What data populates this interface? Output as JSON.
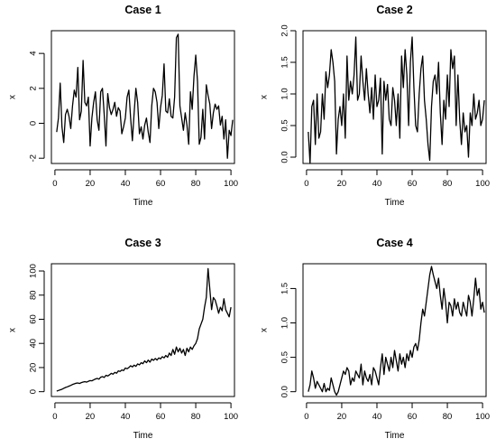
{
  "chart_data": [
    {
      "type": "line",
      "title": "Case 1",
      "xlabel": "Time",
      "ylabel": "x",
      "xlim": [
        -2,
        102
      ],
      "ylim": [
        -2.3,
        5.3
      ],
      "xticks": [
        0,
        20,
        40,
        60,
        80,
        100
      ],
      "yticks": [
        -2,
        0,
        2,
        4
      ],
      "ytick_labels": [
        "-2",
        "0",
        "2",
        "4"
      ],
      "x_start": 1,
      "values": [
        -0.5,
        0.3,
        2.3,
        -0.2,
        -1.1,
        0.5,
        0.8,
        0.4,
        -0.3,
        1.0,
        1.9,
        1.5,
        3.2,
        0.2,
        0.7,
        3.6,
        1.2,
        1.0,
        1.5,
        -1.3,
        0.3,
        1.2,
        1.8,
        0.2,
        -0.4,
        1.8,
        2.0,
        0.5,
        -1.3,
        1.7,
        0.9,
        0.5,
        0.8,
        1.2,
        0.4,
        0.9,
        0.7,
        -0.6,
        -0.2,
        0.3,
        1.5,
        1.9,
        0.3,
        -1.0,
        0.6,
        2.0,
        1.2,
        -0.6,
        -0.2,
        -0.9,
        -0.1,
        0.3,
        -0.5,
        -1.1,
        1.0,
        2.0,
        1.8,
        1.2,
        -0.3,
        0.9,
        1.6,
        3.4,
        0.7,
        0.6,
        1.4,
        0.4,
        0.3,
        1.5,
        4.9,
        5.1,
        1.0,
        0.3,
        -0.4,
        0.6,
        -0.1,
        -1.2,
        1.8,
        0.8,
        2.7,
        3.9,
        2.4,
        -1.2,
        -0.8,
        0.8,
        -0.9,
        2.2,
        1.6,
        1.1,
        -0.3,
        0.6,
        1.1,
        0.8,
        1.0,
        -0.1,
        0.4,
        -0.9,
        0.2,
        -2.0,
        -0.4,
        -0.7,
        0.2
      ],
      "color": "#000000"
    },
    {
      "type": "line",
      "title": "Case 2",
      "xlabel": "Time",
      "ylabel": "x",
      "xlim": [
        -2,
        102
      ],
      "ylim": [
        -0.1,
        2.0
      ],
      "xticks": [
        0,
        20,
        40,
        60,
        80,
        100
      ],
      "yticks": [
        0.0,
        0.5,
        1.0,
        1.5,
        2.0
      ],
      "ytick_labels": [
        "0.0",
        "0.5",
        "1.0",
        "1.5",
        "2.0"
      ],
      "x_start": 1,
      "values": [
        0.4,
        -0.1,
        0.8,
        0.9,
        0.2,
        1.0,
        0.3,
        0.4,
        1.0,
        0.6,
        1.35,
        1.1,
        1.3,
        1.7,
        1.5,
        1.2,
        0.05,
        0.6,
        0.8,
        0.5,
        1.0,
        0.3,
        1.6,
        0.9,
        1.2,
        1.0,
        1.3,
        1.9,
        0.9,
        1.0,
        1.6,
        1.2,
        0.9,
        1.4,
        1.0,
        0.7,
        1.1,
        0.6,
        1.3,
        0.8,
        0.9,
        1.25,
        0.05,
        1.2,
        0.9,
        1.15,
        0.6,
        0.5,
        1.1,
        0.9,
        0.5,
        1.0,
        0.3,
        1.6,
        1.1,
        1.7,
        1.3,
        0.5,
        1.5,
        1.9,
        1.1,
        0.5,
        0.4,
        1.0,
        1.4,
        1.6,
        0.9,
        0.6,
        0.2,
        -0.05,
        0.8,
        1.2,
        1.3,
        1.0,
        1.5,
        0.7,
        0.2,
        0.9,
        0.6,
        1.3,
        0.8,
        1.7,
        1.4,
        1.6,
        0.5,
        1.3,
        0.6,
        0.2,
        0.7,
        0.4,
        0.5,
        0.0,
        0.7,
        0.5,
        1.0,
        0.6,
        0.7,
        0.9,
        0.5,
        0.6,
        0.9
      ],
      "color": "#000000"
    },
    {
      "type": "line",
      "title": "Case 3",
      "xlabel": "Time",
      "ylabel": "x",
      "xlim": [
        -2,
        102
      ],
      "ylim": [
        -4,
        106
      ],
      "xticks": [
        0,
        20,
        40,
        60,
        80,
        100
      ],
      "yticks": [
        0,
        20,
        40,
        60,
        80,
        100
      ],
      "ytick_labels": [
        "0",
        "20",
        "40",
        "60",
        "80",
        "100"
      ],
      "x_start": 1,
      "values": [
        0.5,
        1.0,
        1.5,
        2.0,
        2.8,
        3.5,
        4.0,
        4.6,
        5.2,
        6.0,
        6.5,
        7.0,
        7.2,
        6.8,
        7.5,
        8.0,
        8.3,
        7.9,
        8.6,
        9.2,
        9.0,
        9.8,
        10.5,
        11.0,
        10.4,
        12.0,
        12.5,
        11.8,
        13.6,
        13.0,
        14.0,
        15.2,
        14.5,
        16.0,
        15.3,
        17.2,
        16.8,
        18.0,
        17.5,
        19.6,
        19.0,
        20.0,
        21.5,
        20.5,
        22.0,
        21.0,
        23.0,
        22.2,
        24.0,
        23.2,
        25.5,
        24.0,
        26.2,
        24.5,
        27.0,
        26.0,
        27.5,
        26.2,
        28.0,
        27.2,
        29.0,
        28.0,
        30.0,
        28.5,
        32.0,
        30.0,
        35.0,
        31.0,
        37.0,
        33.0,
        36.0,
        32.0,
        35.0,
        30.0,
        36.0,
        33.0,
        37.0,
        35.0,
        38.0,
        40.0,
        44.0,
        52.0,
        56.0,
        60.0,
        70.0,
        78.0,
        102.0,
        85.0,
        68.0,
        78.0,
        76.0,
        71.0,
        65.0,
        70.0,
        67.0,
        77.0,
        68.0,
        65.0,
        62.0,
        70.0
      ],
      "color": "#000000"
    },
    {
      "type": "line",
      "title": "Case 4",
      "xlabel": "Time",
      "ylabel": "x",
      "xlim": [
        -2,
        102
      ],
      "ylim": [
        -0.07,
        1.86
      ],
      "xticks": [
        0,
        20,
        40,
        60,
        80,
        100
      ],
      "yticks": [
        0.0,
        0.5,
        1.0,
        1.5
      ],
      "ytick_labels": [
        "0.0",
        "0.5",
        "1.0",
        "1.5"
      ],
      "x_start": 1,
      "values": [
        0.0,
        0.1,
        0.3,
        0.2,
        0.05,
        0.15,
        0.1,
        0.05,
        0.0,
        0.12,
        0.0,
        0.05,
        0.02,
        0.2,
        0.1,
        0.0,
        -0.05,
        0.0,
        0.1,
        0.2,
        0.3,
        0.25,
        0.35,
        0.3,
        0.1,
        0.2,
        0.15,
        0.3,
        0.25,
        0.2,
        0.4,
        0.1,
        0.3,
        0.2,
        0.15,
        0.25,
        0.1,
        0.35,
        0.3,
        0.2,
        0.1,
        0.35,
        0.55,
        0.25,
        0.5,
        0.4,
        0.3,
        0.5,
        0.35,
        0.6,
        0.45,
        0.3,
        0.55,
        0.4,
        0.5,
        0.35,
        0.55,
        0.45,
        0.6,
        0.5,
        0.65,
        0.7,
        0.6,
        0.75,
        1.0,
        1.2,
        1.1,
        1.3,
        1.5,
        1.7,
        1.82,
        1.7,
        1.6,
        1.5,
        1.65,
        1.4,
        1.2,
        1.5,
        1.3,
        1.0,
        1.3,
        1.25,
        1.1,
        1.35,
        1.2,
        1.3,
        1.15,
        1.1,
        1.3,
        1.2,
        1.1,
        1.4,
        1.3,
        1.1,
        1.35,
        1.65,
        1.4,
        1.5,
        1.2,
        1.3,
        1.15
      ],
      "color": "#000000"
    }
  ]
}
